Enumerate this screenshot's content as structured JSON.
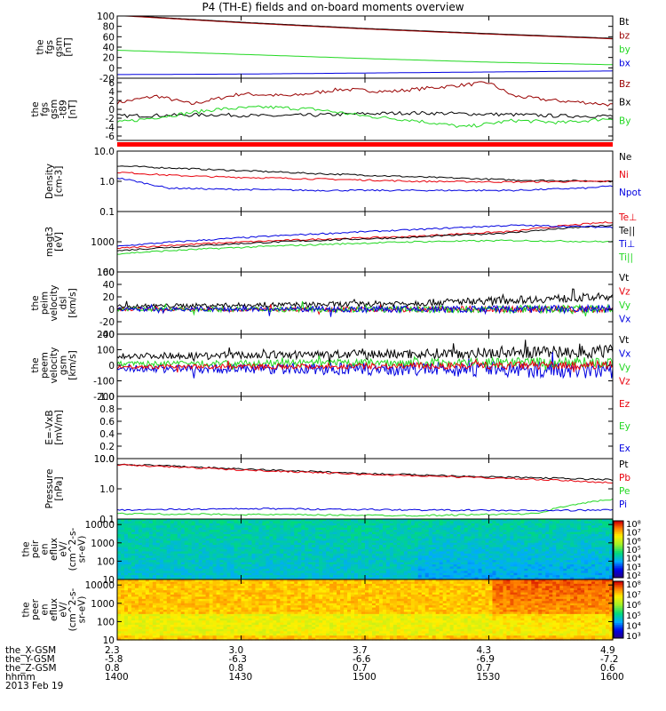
{
  "title": "P4 (TH-E) fields and on-board moments overview",
  "colors": {
    "black": "#000000",
    "red": "#e8000b",
    "darkred": "#990000",
    "green": "#22d822",
    "blue": "#0000e0"
  },
  "chart_data": [
    {
      "type": "line",
      "id": "fgs",
      "ylabel": [
        "the",
        "fgs",
        "gsm",
        "[nT]"
      ],
      "ylim": [
        -20,
        100
      ],
      "yticks": [
        "100",
        "80",
        "60",
        "40",
        "20",
        "0",
        "-20"
      ],
      "yticks_v": [
        100,
        80,
        60,
        40,
        20,
        0,
        -20
      ],
      "series": [
        {
          "name": "Bt",
          "color": "#000000",
          "x": [
            0,
            0.25,
            0.5,
            0.75,
            1
          ],
          "y": [
            102,
            88,
            76,
            66,
            57
          ]
        },
        {
          "name": "bz",
          "color": "#990000",
          "x": [
            0,
            0.25,
            0.5,
            0.75,
            1
          ],
          "y": [
            101,
            87,
            75,
            65,
            56
          ]
        },
        {
          "name": "by",
          "color": "#22d822",
          "x": [
            0,
            0.25,
            0.5,
            0.75,
            1
          ],
          "y": [
            34,
            26,
            18,
            11,
            6
          ]
        },
        {
          "name": "bx",
          "color": "#0000e0",
          "x": [
            0,
            0.25,
            0.5,
            0.75,
            1
          ],
          "y": [
            -13,
            -12,
            -10,
            -8,
            -6
          ]
        }
      ]
    },
    {
      "type": "line",
      "id": "fgm-t89",
      "ylabel": [
        "the",
        "fgs",
        "gsm",
        "-t89",
        "[nT]"
      ],
      "ylim": [
        -7,
        7
      ],
      "yticks": [
        "6",
        "4",
        "2",
        "0",
        "-2",
        "-4",
        "-6"
      ],
      "yticks_v": [
        6,
        4,
        2,
        0,
        -2,
        -4,
        -6
      ],
      "series": [
        {
          "name": "Bz",
          "color": "#990000",
          "x": [
            0,
            0.08,
            0.15,
            0.25,
            0.35,
            0.45,
            0.55,
            0.65,
            0.75,
            0.8,
            0.88,
            0.95,
            1
          ],
          "y": [
            1.5,
            3,
            1.2,
            3.5,
            3,
            4.5,
            4,
            5,
            6,
            3,
            2,
            1.5,
            1
          ]
        },
        {
          "name": "Bx",
          "color": "#000000",
          "x": [
            0,
            0.2,
            0.3,
            0.4,
            0.5,
            0.6,
            0.7,
            0.8,
            0.9,
            1
          ],
          "y": [
            -1.5,
            -1.2,
            -1.5,
            -1.3,
            -1,
            -0.8,
            -1,
            -1.2,
            -1.5,
            -1.5
          ]
        },
        {
          "name": "By",
          "color": "#22d822",
          "x": [
            0,
            0.1,
            0.2,
            0.3,
            0.4,
            0.5,
            0.6,
            0.7,
            0.8,
            0.9,
            1
          ],
          "y": [
            -3,
            -1.5,
            0,
            0.5,
            0,
            -1.5,
            -2.5,
            -4,
            -2.5,
            -3,
            -2
          ]
        }
      ]
    },
    {
      "type": "line",
      "id": "density",
      "log": true,
      "ylabel": [
        "Density",
        "[cm-3]"
      ],
      "ylim": [
        0.1,
        10
      ],
      "yticks": [
        "10.0",
        "1.0",
        "0.1"
      ],
      "yticks_v": [
        10,
        1,
        0.1
      ],
      "series": [
        {
          "name": "Ne",
          "color": "#000000",
          "x": [
            0,
            0.1,
            0.2,
            0.4,
            0.6,
            0.8,
            1
          ],
          "y": [
            3.2,
            2.8,
            2.4,
            1.8,
            1.4,
            1.1,
            1.0
          ]
        },
        {
          "name": "Ni",
          "color": "#e8000b",
          "x": [
            0,
            0.1,
            0.2,
            0.4,
            0.6,
            0.8,
            1
          ],
          "y": [
            2.0,
            1.6,
            1.4,
            1.2,
            1.0,
            0.95,
            1.0
          ]
        },
        {
          "name": "Npot",
          "color": "#0000e0",
          "x": [
            0,
            0.05,
            0.1,
            0.2,
            0.4,
            0.6,
            0.8,
            0.95,
            1
          ],
          "y": [
            1.3,
            0.9,
            0.6,
            0.55,
            0.5,
            0.5,
            0.5,
            0.6,
            0.7
          ]
        }
      ]
    },
    {
      "type": "line",
      "id": "magt3",
      "log": true,
      "ylabel": [
        "magt3",
        "[eV]"
      ],
      "ylim": [
        100,
        10000
      ],
      "yticks": [
        "1000",
        "100"
      ],
      "yticks_v": [
        1000,
        100
      ],
      "series": [
        {
          "name": "Te⊥",
          "color": "#e8000b",
          "x": [
            0,
            0.2,
            0.4,
            0.6,
            0.8,
            1
          ],
          "y": [
            600,
            900,
            1200,
            1500,
            2200,
            4500
          ]
        },
        {
          "name": "Te||",
          "color": "#000000",
          "x": [
            0,
            0.2,
            0.4,
            0.6,
            0.8,
            1
          ],
          "y": [
            500,
            800,
            1100,
            1400,
            2000,
            3500
          ]
        },
        {
          "name": "Ti⊥",
          "color": "#0000e0",
          "x": [
            0,
            0.2,
            0.4,
            0.6,
            0.8,
            1
          ],
          "y": [
            700,
            1200,
            1800,
            2500,
            3500,
            3000
          ]
        },
        {
          "name": "Ti||",
          "color": "#22d822",
          "x": [
            0,
            0.2,
            0.4,
            0.6,
            0.8,
            1
          ],
          "y": [
            400,
            600,
            800,
            1000,
            1100,
            1000
          ]
        }
      ]
    },
    {
      "type": "line",
      "id": "peim",
      "ylabel": [
        "the",
        "peim",
        "velocity",
        "dsl",
        "[km/s]"
      ],
      "ylim": [
        -40,
        60
      ],
      "yticks": [
        "60",
        "40",
        "20",
        "0",
        "-20",
        "-40"
      ],
      "yticks_v": [
        60,
        40,
        20,
        0,
        -20,
        -40
      ],
      "noise": true,
      "series": [
        {
          "name": "Vt",
          "color": "#000000",
          "x": [
            0,
            0.5,
            0.8,
            1
          ],
          "y": [
            5,
            8,
            15,
            20
          ],
          "amp": 5
        },
        {
          "name": "Vz",
          "color": "#e8000b",
          "x": [
            0,
            1
          ],
          "y": [
            0,
            0
          ],
          "amp": 4
        },
        {
          "name": "Vy",
          "color": "#22d822",
          "x": [
            0,
            1
          ],
          "y": [
            0,
            0
          ],
          "amp": 5
        },
        {
          "name": "Vx",
          "color": "#0000e0",
          "x": [
            0,
            1
          ],
          "y": [
            0,
            0
          ],
          "amp": 5
        }
      ]
    },
    {
      "type": "line",
      "id": "peem",
      "ylabel": [
        "the",
        "peem",
        "velocity",
        "gsm",
        "[km/s]"
      ],
      "ylim": [
        -200,
        200
      ],
      "yticks": [
        "200",
        "100",
        "0",
        "-100",
        "-200"
      ],
      "yticks_v": [
        200,
        100,
        0,
        -100,
        -200
      ],
      "noise": true,
      "series": [
        {
          "name": "Vt",
          "color": "#000000",
          "x": [
            0,
            0.5,
            1
          ],
          "y": [
            60,
            70,
            90
          ],
          "amp": 30
        },
        {
          "name": "Vx",
          "color": "#0000e0",
          "x": [
            0,
            1
          ],
          "y": [
            -20,
            -30
          ],
          "amp": 40
        },
        {
          "name": "Vy",
          "color": "#22d822",
          "x": [
            0,
            1
          ],
          "y": [
            10,
            20
          ],
          "amp": 25
        },
        {
          "name": "Vz",
          "color": "#e8000b",
          "x": [
            0,
            1
          ],
          "y": [
            -10,
            0
          ],
          "amp": 20
        }
      ]
    },
    {
      "type": "line",
      "id": "efield",
      "ylabel": [
        "E=-VxB",
        "[mV/m]"
      ],
      "ylim": [
        0,
        1
      ],
      "yticks": [
        "1.0",
        "0.8",
        "0.6",
        "0.4",
        "0.2",
        "0.0"
      ],
      "yticks_v": [
        1,
        0.8,
        0.6,
        0.4,
        0.2,
        0
      ],
      "series": [
        {
          "name": "Ez",
          "color": "#e8000b",
          "x": [],
          "y": []
        },
        {
          "name": "Ey",
          "color": "#22d822",
          "x": [],
          "y": []
        },
        {
          "name": "Ex",
          "color": "#0000e0",
          "x": [],
          "y": []
        }
      ]
    },
    {
      "type": "line",
      "id": "pressure",
      "log": true,
      "ylabel": [
        "Pressure",
        "[nPa]"
      ],
      "ylim": [
        0.1,
        10
      ],
      "yticks": [
        "10.0",
        "1.0",
        "0.1"
      ],
      "yticks_v": [
        10,
        1,
        0.1
      ],
      "series": [
        {
          "name": "Pt",
          "color": "#000000",
          "x": [
            0,
            0.25,
            0.5,
            0.75,
            1
          ],
          "y": [
            6.5,
            4.5,
            3.2,
            2.5,
            2.0
          ]
        },
        {
          "name": "Pb",
          "color": "#e8000b",
          "x": [
            0,
            0.25,
            0.5,
            0.75,
            1
          ],
          "y": [
            6.2,
            4.2,
            3.0,
            2.3,
            1.6
          ]
        },
        {
          "name": "Pe",
          "color": "#22d822",
          "x": [
            0,
            0.3,
            0.6,
            0.85,
            0.92,
            1
          ],
          "y": [
            0.15,
            0.14,
            0.13,
            0.15,
            0.3,
            0.45
          ]
        },
        {
          "name": "Pi",
          "color": "#0000e0",
          "x": [
            0,
            0.3,
            0.6,
            0.85,
            1
          ],
          "y": [
            0.2,
            0.22,
            0.2,
            0.19,
            0.2
          ]
        }
      ]
    },
    {
      "type": "heatmap",
      "id": "peir",
      "ylabel": [
        "the",
        "peir",
        "en",
        "eflux",
        "eV/",
        "(cm^2-s-",
        "sr-eV)"
      ],
      "ylim": [
        10,
        20000
      ],
      "yticks": [
        "10000",
        "1000",
        "100",
        "10"
      ],
      "yticks_v": [
        10000,
        1000,
        100,
        10
      ],
      "colorbar": {
        "min_exp": 2,
        "max_exp": 8,
        "labels": [
          "10⁸",
          "10⁷",
          "10⁶",
          "10⁵",
          "10⁴",
          "10³",
          "10²"
        ]
      },
      "level": 0.38
    },
    {
      "type": "heatmap",
      "id": "peer",
      "ylabel": [
        "the",
        "peer",
        "en",
        "eflux",
        "eV/",
        "(cm^2-s-",
        "sr-eV)"
      ],
      "ylim": [
        10,
        20000
      ],
      "yticks": [
        "10000",
        "1000",
        "100",
        "10"
      ],
      "yticks_v": [
        10000,
        1000,
        100,
        10
      ],
      "colorbar": {
        "min_exp": 3,
        "max_exp": 8,
        "labels": [
          "10⁸",
          "10⁷",
          "10⁶",
          "10⁵",
          "10⁴",
          "10³"
        ]
      },
      "level": 0.8
    }
  ],
  "ephemeris": {
    "rows": [
      {
        "label": "the_X-GSM",
        "values": [
          "2.3",
          "3.0",
          "3.7",
          "4.3",
          "4.9"
        ]
      },
      {
        "label": "the_Y-GSM",
        "values": [
          "-5.8",
          "-6.3",
          "-6.6",
          "-6.9",
          "-7.2"
        ]
      },
      {
        "label": "the_Z-GSM",
        "values": [
          "0.8",
          "0.8",
          "0.7",
          "0.7",
          "0.6"
        ]
      },
      {
        "label": "hhmm",
        "values": [
          "1400",
          "1430",
          "1500",
          "1530",
          "1600"
        ]
      }
    ],
    "date": "2013 Feb 19"
  }
}
